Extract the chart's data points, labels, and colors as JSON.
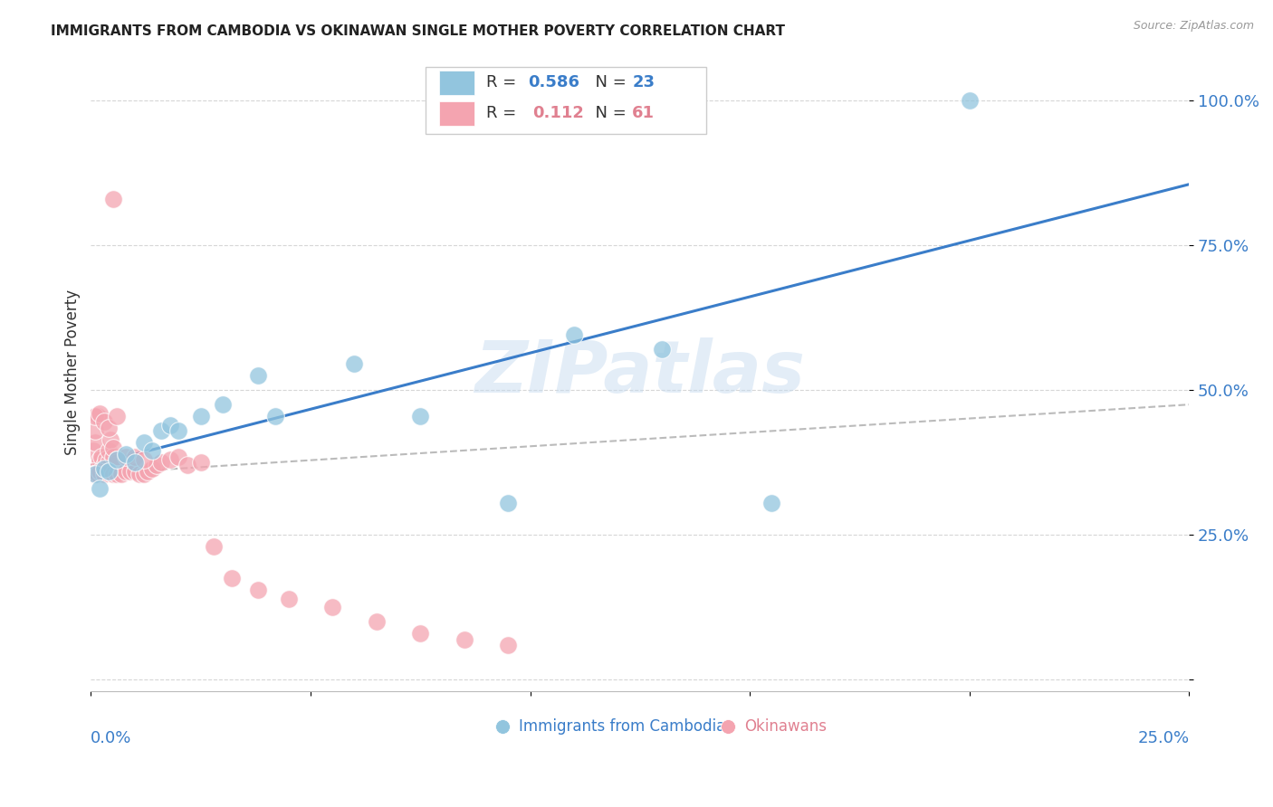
{
  "title": "IMMIGRANTS FROM CAMBODIA VS OKINAWAN SINGLE MOTHER POVERTY CORRELATION CHART",
  "source": "Source: ZipAtlas.com",
  "ylabel": "Single Mother Poverty",
  "watermark": "ZIPatlas",
  "xlim": [
    0.0,
    0.25
  ],
  "ylim": [
    -0.02,
    1.08
  ],
  "blue_color": "#92C5DE",
  "pink_color": "#F4A4B0",
  "line_blue": "#3A7DC9",
  "line_pink": "#E08090",
  "cambodia_x": [
    0.001,
    0.002,
    0.003,
    0.004,
    0.006,
    0.008,
    0.01,
    0.012,
    0.014,
    0.016,
    0.018,
    0.02,
    0.025,
    0.03,
    0.038,
    0.042,
    0.06,
    0.075,
    0.095,
    0.11,
    0.13,
    0.155,
    0.2
  ],
  "cambodia_y": [
    0.355,
    0.33,
    0.365,
    0.36,
    0.38,
    0.39,
    0.375,
    0.41,
    0.395,
    0.43,
    0.44,
    0.43,
    0.455,
    0.475,
    0.525,
    0.455,
    0.545,
    0.455,
    0.305,
    0.595,
    0.57,
    0.305,
    1.0
  ],
  "okinawan_x": [
    0.0002,
    0.0003,
    0.0004,
    0.0006,
    0.0007,
    0.0008,
    0.0009,
    0.001,
    0.0011,
    0.0012,
    0.0013,
    0.0015,
    0.0016,
    0.0018,
    0.002,
    0.0022,
    0.0025,
    0.003,
    0.0032,
    0.0035,
    0.004,
    0.0042,
    0.0045,
    0.005,
    0.0055,
    0.006,
    0.0065,
    0.007,
    0.0075,
    0.008,
    0.009,
    0.01,
    0.011,
    0.012,
    0.013,
    0.014,
    0.015,
    0.016,
    0.018,
    0.02,
    0.022,
    0.025,
    0.028,
    0.03,
    0.032,
    0.035,
    0.038,
    0.04,
    0.042,
    0.045,
    0.048,
    0.05,
    0.055,
    0.06,
    0.065,
    0.07,
    0.075,
    0.08,
    0.085,
    0.09,
    0.095
  ],
  "okinawan_y": [
    0.355,
    0.36,
    0.37,
    0.38,
    0.385,
    0.37,
    0.375,
    0.36,
    0.42,
    0.435,
    0.44,
    0.455,
    0.47,
    0.46,
    0.38,
    0.395,
    0.455,
    0.36,
    0.37,
    0.445,
    0.375,
    0.395,
    0.455,
    0.475,
    0.425,
    0.38,
    0.395,
    0.42,
    0.385,
    0.385,
    0.385,
    0.405,
    0.395,
    0.41,
    0.4,
    0.38,
    0.38,
    0.395,
    0.38,
    0.385,
    0.375,
    0.385,
    0.37,
    0.415,
    0.23,
    0.175,
    0.155,
    0.145,
    0.14,
    0.135,
    0.125,
    0.1,
    0.09,
    0.085,
    0.095,
    0.08,
    0.075,
    0.07,
    0.065,
    0.06,
    0.055
  ],
  "background_color": "#FFFFFF",
  "title_fontsize": 11,
  "source_fontsize": 9,
  "tick_label_color": "#3A7DC9",
  "grid_color": "#CCCCCC"
}
